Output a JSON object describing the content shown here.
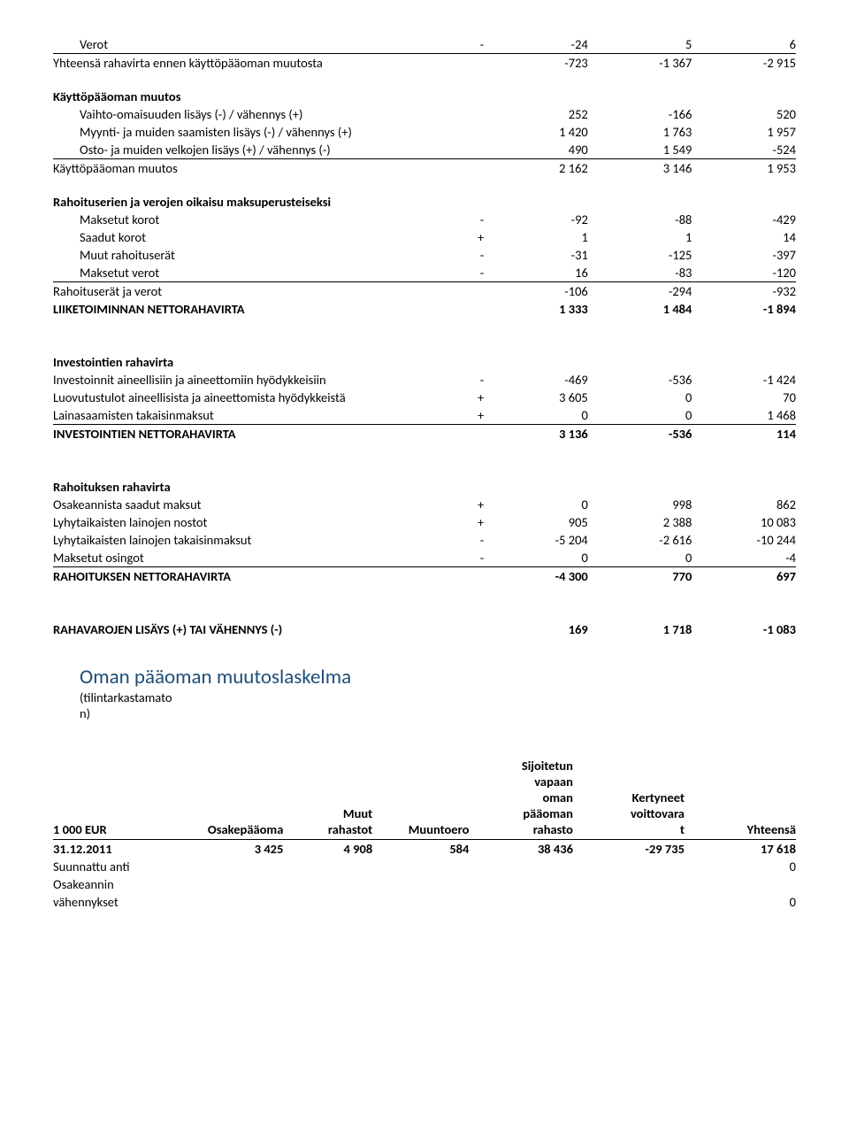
{
  "rows": [
    {
      "type": "row",
      "label": "Verot",
      "sign": "-",
      "v1": "-24",
      "v2": "5",
      "v3": "6",
      "indent": true,
      "bb": true
    },
    {
      "type": "row",
      "label": "Yhteensä rahavirta ennen käyttöpääoman muutosta",
      "sign": "",
      "v1": "-723",
      "v2": "-1 367",
      "v3": "-2 915"
    },
    {
      "type": "gap"
    },
    {
      "type": "row",
      "label": "Käyttöpääoman muutos",
      "bold": true
    },
    {
      "type": "row",
      "label": "Vaihto-omaisuuden lisäys (-) / vähennys (+)",
      "sign": "",
      "v1": "252",
      "v2": "-166",
      "v3": "520",
      "indent": true
    },
    {
      "type": "row",
      "label": "Myynti- ja muiden saamisten lisäys (-) / vähennys (+)",
      "sign": "",
      "v1": "1 420",
      "v2": "1 763",
      "v3": "1 957",
      "indent": true
    },
    {
      "type": "row",
      "label": "Osto- ja muiden velkojen lisäys (+) / vähennys (-)",
      "sign": "",
      "v1": "490",
      "v2": "1 549",
      "v3": "-524",
      "indent": true,
      "bb": true
    },
    {
      "type": "row",
      "label": "Käyttöpääoman muutos",
      "sign": "",
      "v1": "2 162",
      "v2": "3 146",
      "v3": "1 953"
    },
    {
      "type": "gap"
    },
    {
      "type": "row",
      "label": "Rahoituserien ja verojen oikaisu maksuperusteiseksi",
      "bold": true
    },
    {
      "type": "row",
      "label": "Maksetut korot",
      "sign": "-",
      "v1": "-92",
      "v2": "-88",
      "v3": "-429",
      "indent": true
    },
    {
      "type": "row",
      "label": "Saadut korot",
      "sign": "+",
      "v1": "1",
      "v2": "1",
      "v3": "14",
      "indent": true
    },
    {
      "type": "row",
      "label": "Muut rahoituserät",
      "sign": "-",
      "v1": "-31",
      "v2": "-125",
      "v3": "-397",
      "indent": true
    },
    {
      "type": "row",
      "label": "Maksetut verot",
      "sign": "-",
      "v1": "16",
      "v2": "-83",
      "v3": "-120",
      "indent": true,
      "bb": true
    },
    {
      "type": "row",
      "label": "Rahoituserät ja verot",
      "sign": "",
      "v1": "-106",
      "v2": "-294",
      "v3": "-932"
    },
    {
      "type": "row",
      "label": "LIIKETOIMINNAN NETTORAHAVIRTA",
      "sign": "",
      "v1": "1 333",
      "v2": "1 484",
      "v3": "-1 894",
      "bold": true
    },
    {
      "type": "biggap"
    },
    {
      "type": "row",
      "label": "Investointien rahavirta",
      "bold": true
    },
    {
      "type": "row",
      "label": "Investoinnit aineellisiin ja aineettomiin hyödykkeisiin",
      "sign": "-",
      "v1": "-469",
      "v2": "-536",
      "v3": "-1 424"
    },
    {
      "type": "row",
      "label": "Luovutustulot aineellisista ja aineettomista hyödykkeistä",
      "sign": "+",
      "v1": "3 605",
      "v2": "0",
      "v3": "70"
    },
    {
      "type": "row",
      "label": "Lainasaamisten takaisinmaksut",
      "sign": "+",
      "v1": "0",
      "v2": "0",
      "v3": "1 468",
      "bb": true
    },
    {
      "type": "row",
      "label": "INVESTOINTIEN NETTORAHAVIRTA",
      "sign": "",
      "v1": "3 136",
      "v2": "-536",
      "v3": "114",
      "bold": true
    },
    {
      "type": "biggap"
    },
    {
      "type": "row",
      "label": "Rahoituksen rahavirta",
      "bold": true
    },
    {
      "type": "row",
      "label": "Osakeannista saadut maksut",
      "sign": "+",
      "v1": "0",
      "v2": "998",
      "v3": "862"
    },
    {
      "type": "row",
      "label": "Lyhytaikaisten lainojen nostot",
      "sign": "+",
      "v1": "905",
      "v2": "2 388",
      "v3": "10 083"
    },
    {
      "type": "row",
      "label": "Lyhytaikaisten lainojen takaisinmaksut",
      "sign": "-",
      "v1": "-5 204",
      "v2": "-2 616",
      "v3": "-10 244"
    },
    {
      "type": "row",
      "label": "Maksetut osingot",
      "sign": "-",
      "v1": "0",
      "v2": "0",
      "v3": "-4",
      "bb": true
    },
    {
      "type": "row",
      "label": "RAHOITUKSEN NETTORAHAVIRTA",
      "sign": "",
      "v1": "-4 300",
      "v2": "770",
      "v3": "697",
      "bold": true
    },
    {
      "type": "biggap"
    },
    {
      "type": "row",
      "label": "RAHAVAROJEN LISÄYS (+) TAI VÄHENNYS (-)",
      "sign": "",
      "v1": "169",
      "v2": "1 718",
      "v3": "-1 083",
      "bold": true
    }
  ],
  "heading": "Oman pääoman muutoslaskelma",
  "subheading1": "(tilintarkastamato",
  "subheading2": "n)",
  "t2header": {
    "c0": "1 000 EUR",
    "c1": "Osakepääoma",
    "c2_l1": "Muut",
    "c2_l2": "rahastot",
    "c3": "Muuntoero",
    "c4_l1": "Sijoitetun",
    "c4_l2": "vapaan",
    "c4_l3": "oman",
    "c4_l4": "pääoman",
    "c4_l5": "rahasto",
    "c5_l1": "Kertyneet",
    "c5_l2": "voittovara",
    "c5_l3": "t",
    "c6": "Yhteensä"
  },
  "t2rows": [
    {
      "label": "31.12.2011",
      "bold": true,
      "v": [
        "3 425",
        "4 908",
        "584",
        "38 436",
        "-29 735",
        "17 618"
      ]
    },
    {
      "label": "Suunnattu anti",
      "v": [
        "",
        "",
        "",
        "",
        "",
        "0"
      ]
    },
    {
      "label": "Osakeannin",
      "v": [
        "",
        "",
        "",
        "",
        "",
        ""
      ]
    },
    {
      "label": "vähennykset",
      "v": [
        "",
        "",
        "",
        "",
        "",
        "0"
      ]
    }
  ]
}
